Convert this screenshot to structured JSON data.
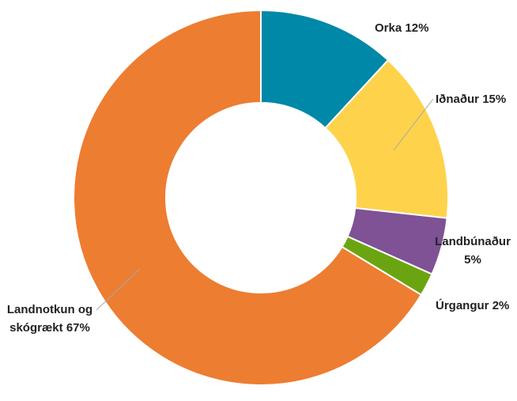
{
  "chart_data": {
    "type": "pie",
    "categories": [
      "Orka",
      "Iðnaður",
      "Landbúnaður",
      "Úrgangur",
      "Landnotkun og skógrækt"
    ],
    "values": [
      12,
      15,
      5,
      2,
      67
    ],
    "value_labels": [
      "12%",
      "15%",
      "5%",
      "2%",
      "67%"
    ],
    "colors": [
      "#0088a8",
      "#fed34b",
      "#7f5195",
      "#6aa511",
      "#ed7d31"
    ]
  }
}
